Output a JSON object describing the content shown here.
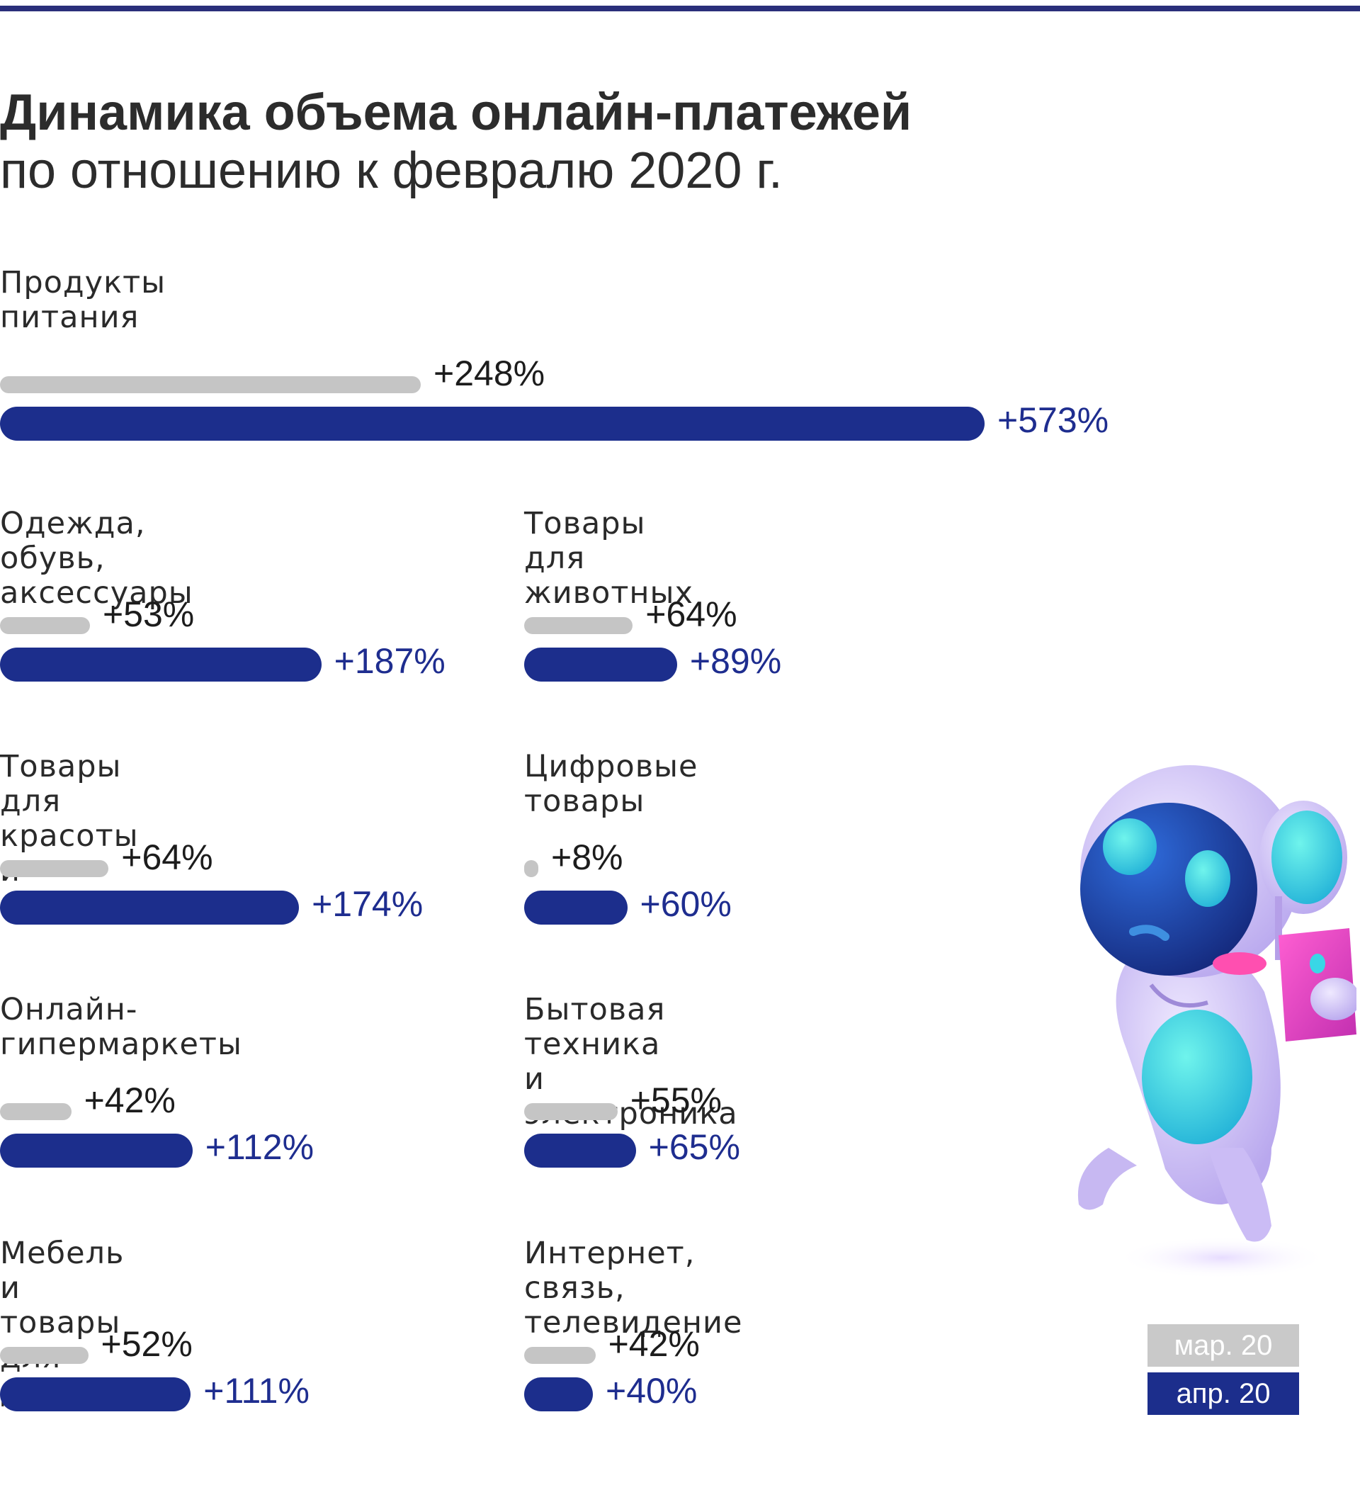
{
  "colors": {
    "accent": "#1e2d8f",
    "march_bar": "#c5c5c5",
    "april_bar": "#1c2e8c",
    "legend_mar": "#c9c9c9",
    "legend_apr": "#1c2e8c",
    "top_rule": "#2a2f7a"
  },
  "chart_data": {
    "type": "bar",
    "title": "Динамика объема онлайн-платежей",
    "subtitle": "по отношению к февралю 2020 г.",
    "unit": "%",
    "categories": [
      "Продукты\nпитания",
      "Одежда, обувь,\nаксессуары",
      "Товары\nдля животных",
      "Товары для красоты\nи здоровья",
      "Цифровые\nтовары",
      "Онлайн-\nгипермаркеты",
      "Бытовая техника\nи электроника",
      "Мебель и товары\nдля дома",
      "Интернет, связь,\nтелевидение"
    ],
    "series": [
      {
        "name": "мар. 20",
        "values": [
          248,
          53,
          64,
          64,
          8,
          42,
          55,
          52,
          42
        ],
        "labels": [
          "+248%",
          "+53%",
          "+64%",
          "+64%",
          "+8%",
          "+42%",
          "+55%",
          "+52%",
          "+42%"
        ]
      },
      {
        "name": "апр. 20",
        "values": [
          573,
          187,
          89,
          174,
          60,
          112,
          65,
          111,
          40
        ],
        "labels": [
          "+573%",
          "+187%",
          "+89%",
          "+174%",
          "+60%",
          "+112%",
          "+65%",
          "+111%",
          "+40%"
        ]
      }
    ],
    "legend": [
      "мар. 20",
      "апр. 20"
    ],
    "legend_position": "bottom-right",
    "grid": false
  }
}
